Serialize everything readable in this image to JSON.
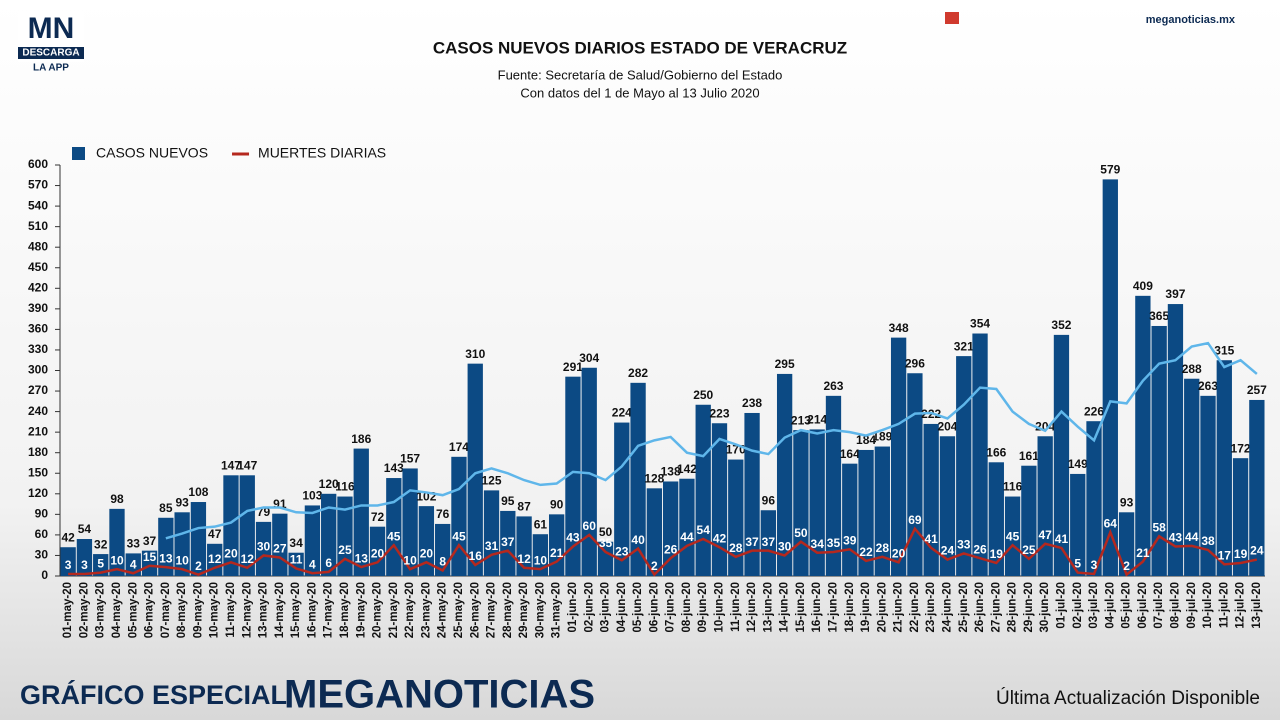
{
  "brand": {
    "logo": "MN",
    "logo_sub": "DESCARGA",
    "logo_app": "LA APP",
    "site": "meganoticias.mx",
    "footer_left": "GRÁFICO ESPECIAL",
    "footer_brand": "MEGANOTICIAS",
    "footer_right": "Última Actualización Disponible"
  },
  "chart_data": {
    "type": "bar",
    "title": "CASOS NUEVOS DIARIOS ESTADO DE VERACRUZ",
    "subtitle": [
      "Fuente: Secretaría de Salud/Gobierno del Estado",
      "Con datos del 1 de Mayo al 13 Julio 2020"
    ],
    "categories": [
      "01-may-20",
      "02-may-20",
      "03-may-20",
      "04-may-20",
      "05-may-20",
      "06-may-20",
      "07-may-20",
      "08-may-20",
      "09-may-20",
      "10-may-20",
      "11-may-20",
      "12-may-20",
      "13-may-20",
      "14-may-20",
      "15-may-20",
      "16-may-20",
      "17-may-20",
      "18-may-20",
      "19-may-20",
      "20-may-20",
      "21-may-20",
      "22-may-20",
      "23-may-20",
      "24-may-20",
      "25-may-20",
      "26-may-20",
      "27-may-20",
      "28-may-20",
      "29-may-20",
      "30-may-20",
      "31-may-20",
      "01-jun-20",
      "02-jun-20",
      "03-jun-20",
      "04-jun-20",
      "05-jun-20",
      "06-jun-20",
      "07-jun-20",
      "08-jun-20",
      "09-jun-20",
      "10-jun-20",
      "11-jun-20",
      "12-jun-20",
      "13-jun-20",
      "14-jun-20",
      "15-jun-20",
      "16-jun-20",
      "17-jun-20",
      "18-jun-20",
      "19-jun-20",
      "20-jun-20",
      "21-jun-20",
      "22-jun-20",
      "23-jun-20",
      "24-jun-20",
      "25-jun-20",
      "26-jun-20",
      "27-jun-20",
      "28-jun-20",
      "29-jun-20",
      "30-jun-20",
      "01-jul-20",
      "02-jul-20",
      "03-jul-20",
      "04-jul-20",
      "05-jul-20",
      "06-jul-20",
      "07-jul-20",
      "08-jul-20",
      "09-jul-20",
      "10-jul-20",
      "11-jul-20",
      "12-jul-20",
      "13-jul-20"
    ],
    "series": [
      {
        "name": "CASOS NUEVOS",
        "type": "bar",
        "color": "#0c4a84",
        "values": [
          42,
          54,
          32,
          98,
          33,
          37,
          85,
          93,
          108,
          47,
          147,
          147,
          79,
          91,
          34,
          103,
          120,
          116,
          186,
          72,
          143,
          157,
          102,
          76,
          174,
          310,
          125,
          95,
          87,
          61,
          90,
          291,
          304,
          50,
          224,
          282,
          128,
          138,
          142,
          250,
          223,
          170,
          238,
          96,
          295,
          213,
          214,
          263,
          164,
          184,
          189,
          348,
          296,
          222,
          204,
          321,
          354,
          166,
          116,
          161,
          204,
          352,
          149,
          226,
          579,
          93,
          409,
          365,
          397,
          288,
          263,
          315,
          172,
          257
        ]
      },
      {
        "name": "MUERTES DIARIAS",
        "type": "line",
        "color": "#b5281e",
        "values": [
          3,
          3,
          5,
          10,
          4,
          15,
          13,
          10,
          2,
          12,
          20,
          12,
          30,
          27,
          11,
          4,
          6,
          25,
          13,
          20,
          45,
          10,
          20,
          8,
          45,
          16,
          31,
          37,
          12,
          10,
          21,
          43,
          60,
          35,
          23,
          40,
          2,
          26,
          44,
          54,
          42,
          28,
          37,
          37,
          30,
          50,
          34,
          35,
          39,
          22,
          28,
          20,
          69,
          41,
          24,
          33,
          26,
          19,
          45,
          25,
          47,
          41,
          5,
          3,
          64,
          2,
          21,
          58,
          43,
          44,
          38,
          17,
          19,
          24
        ]
      },
      {
        "type": "line",
        "color": "#5fb6ea",
        "values": [
          null,
          null,
          null,
          null,
          null,
          null,
          55,
          62,
          70,
          72,
          78,
          95,
          100,
          100,
          93,
          92,
          100,
          97,
          103,
          103,
          108,
          125,
          122,
          118,
          127,
          150,
          157,
          150,
          140,
          133,
          135,
          152,
          150,
          140,
          160,
          190,
          198,
          203,
          180,
          175,
          200,
          192,
          183,
          178,
          202,
          213,
          208,
          213,
          210,
          205,
          213,
          222,
          237,
          238,
          230,
          250,
          275,
          273,
          240,
          222,
          212,
          240,
          218,
          198,
          255,
          252,
          285,
          310,
          315,
          335,
          340,
          305,
          315,
          295
        ]
      }
    ],
    "ylim": [
      0,
      600
    ],
    "yticks": [
      0,
      30,
      60,
      90,
      120,
      150,
      180,
      210,
      240,
      270,
      300,
      330,
      360,
      390,
      420,
      450,
      480,
      510,
      540,
      570,
      600
    ]
  }
}
